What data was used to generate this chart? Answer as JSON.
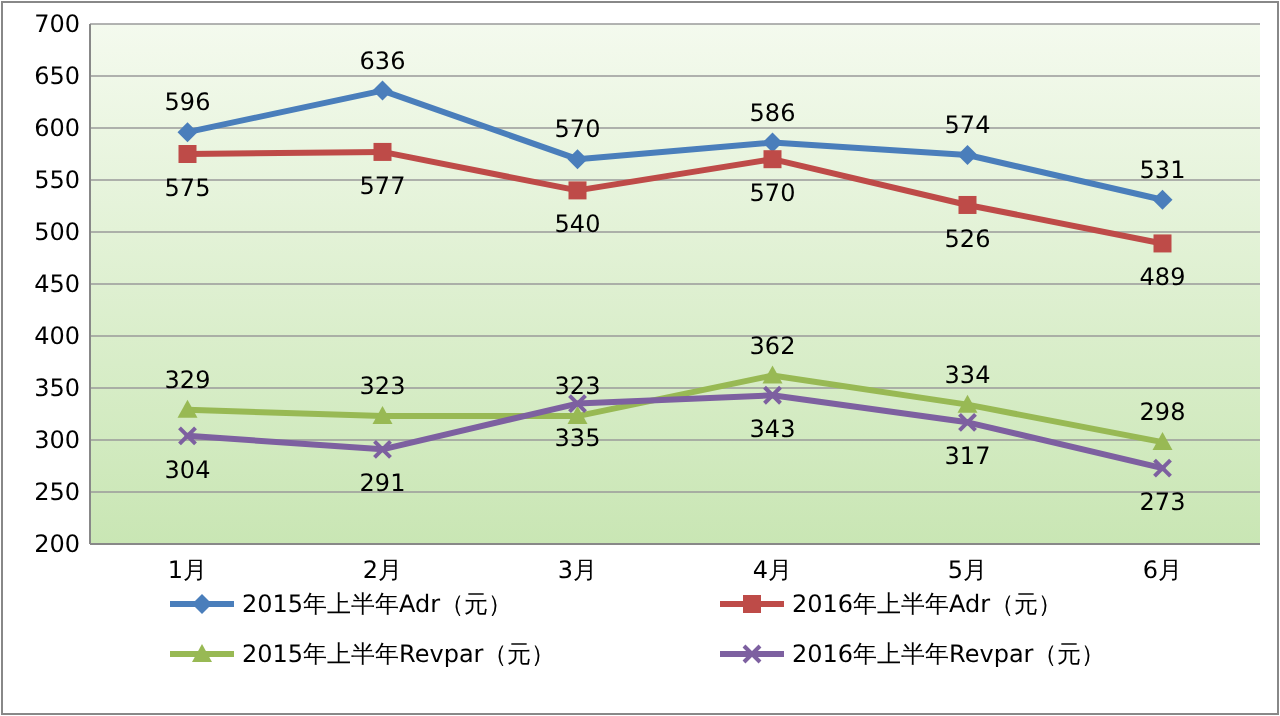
{
  "chart_data": {
    "type": "line",
    "categories": [
      "1月",
      "2月",
      "3月",
      "4月",
      "5月",
      "6月"
    ],
    "series": [
      {
        "name": "2015年上半年Adr（元）",
        "color": "#4a7ebb",
        "marker": "diamond",
        "values": [
          596,
          636,
          570,
          586,
          574,
          531
        ]
      },
      {
        "name": "2016年上半年Adr（元）",
        "color": "#be4b48",
        "marker": "square",
        "values": [
          575,
          577,
          540,
          570,
          526,
          489
        ]
      },
      {
        "name": "2015年上半年Revpar（元）",
        "color": "#98b954",
        "marker": "triangle",
        "values": [
          329,
          323,
          323,
          362,
          334,
          298
        ]
      },
      {
        "name": "2016年上半年Revpar（元）",
        "color": "#7d60a0",
        "marker": "cross",
        "values": [
          304,
          291,
          335,
          343,
          317,
          273
        ]
      }
    ],
    "ylim": [
      200,
      700
    ],
    "yticks": [
      200,
      250,
      300,
      350,
      400,
      450,
      500,
      550,
      600,
      650,
      700
    ],
    "grid": "y",
    "legend": "bottom",
    "data_labels": true,
    "line_style": "solid"
  }
}
